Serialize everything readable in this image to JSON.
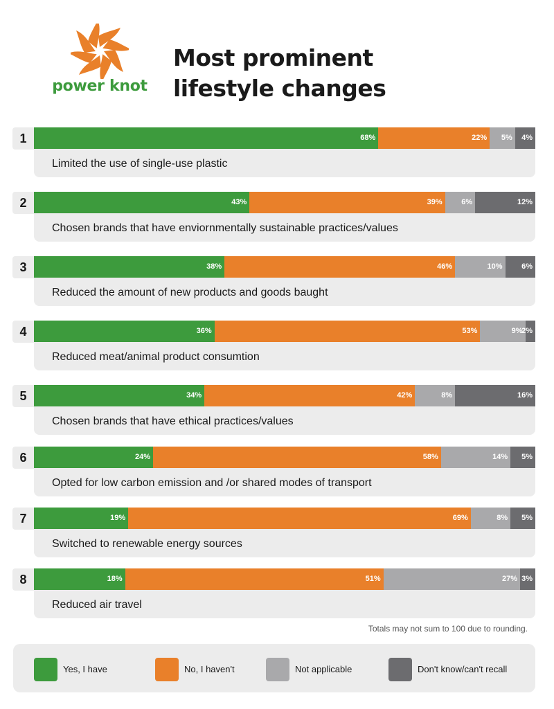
{
  "brand": {
    "name": "power knot"
  },
  "title_lines": [
    "Most prominent",
    "lifestyle changes"
  ],
  "footnote": "Totals may not sum to 100 due to rounding.",
  "colors": {
    "yes": "#3d9b3d",
    "no": "#e9802a",
    "na": "#a9a9ab",
    "dk": "#6c6c6f",
    "brand_orange": "#e9802a",
    "brand_green": "#3d9b3d"
  },
  "legend": [
    {
      "key": "yes",
      "label": "Yes, I have"
    },
    {
      "key": "no",
      "label": "No, I haven't"
    },
    {
      "key": "na",
      "label": "Not applicable"
    },
    {
      "key": "dk",
      "label": "Don't know/can't recall"
    }
  ],
  "chart_data": {
    "type": "bar",
    "orientation": "horizontal",
    "stacked": true,
    "title": "Most prominent lifestyle changes",
    "unit": "%",
    "categories": [
      "Limited the use of single-use plastic",
      "Chosen brands that have enviornmentally sustainable practices/values",
      "Reduced the amount of new products and goods baught",
      "Reduced meat/animal product consumtion",
      "Chosen brands that have ethical practices/values",
      "Opted for low carbon emission and /or shared modes of transport",
      "Switched to renewable energy sources",
      "Reduced air travel"
    ],
    "ranks": [
      "1",
      "2",
      "3",
      "4",
      "5",
      "6",
      "7",
      "8"
    ],
    "series": [
      {
        "name": "Yes, I have",
        "key": "yes",
        "values": [
          68,
          43,
          38,
          36,
          34,
          24,
          19,
          18
        ]
      },
      {
        "name": "No, I haven't",
        "key": "no",
        "values": [
          22,
          39,
          46,
          53,
          42,
          58,
          69,
          51
        ]
      },
      {
        "name": "Not applicable",
        "key": "na",
        "values": [
          5,
          6,
          10,
          9,
          8,
          14,
          8,
          27
        ]
      },
      {
        "name": "Don't know/can't recall",
        "key": "dk",
        "values": [
          4,
          12,
          6,
          2,
          16,
          5,
          5,
          3
        ]
      }
    ],
    "legend_position": "bottom"
  }
}
